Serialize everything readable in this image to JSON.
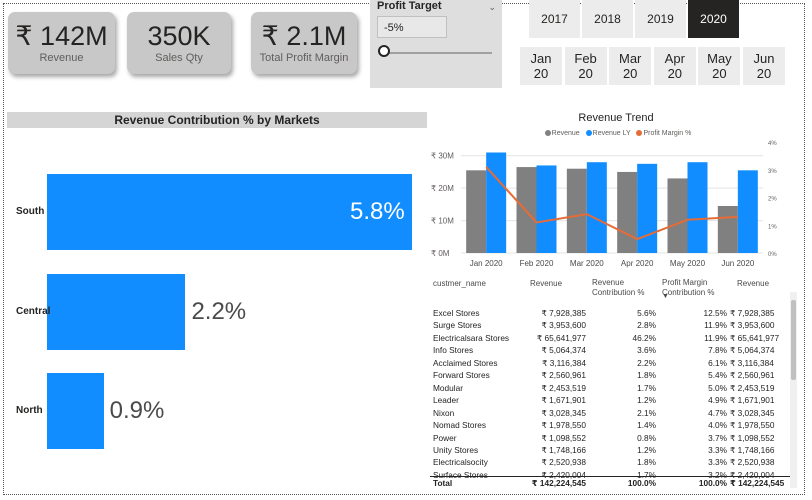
{
  "cards": [
    {
      "value": "₹ 142M",
      "label": "Revenue"
    },
    {
      "value": "350K",
      "label": "Sales Qty"
    },
    {
      "value": "₹ 2.1M",
      "label": "Total Profit Margin"
    }
  ],
  "slicer": {
    "title": "Profit Target",
    "value": "-5%",
    "chevron": "chevron-down-icon",
    "slider_level": 0
  },
  "years": [
    {
      "label": "2017",
      "selected": false
    },
    {
      "label": "2018",
      "selected": false
    },
    {
      "label": "2019",
      "selected": false
    },
    {
      "label": "2020",
      "selected": true
    }
  ],
  "months": [
    {
      "month": "Jan",
      "year": "20"
    },
    {
      "month": "Feb",
      "year": "20"
    },
    {
      "month": "Mar",
      "year": "20"
    },
    {
      "month": "Apr",
      "year": "20"
    },
    {
      "month": "May",
      "year": "20"
    },
    {
      "month": "Jun",
      "year": "20"
    }
  ],
  "colors": {
    "accent": "#118dff",
    "gray": "#808080",
    "orange": "#e66c37",
    "selected": "#252423"
  },
  "chart_data": [
    {
      "type": "bar",
      "title": "Revenue Contribution % by Markets",
      "orientation": "horizontal",
      "categories": [
        "South",
        "Central",
        "North"
      ],
      "values": [
        5.8,
        2.2,
        0.9
      ],
      "value_labels": [
        "5.8%",
        "2.2%",
        "0.9%"
      ],
      "xlim": [
        0,
        5.8
      ]
    },
    {
      "type": "bar",
      "title": "Revenue Trend",
      "categories": [
        "Jan 2020",
        "Feb 2020",
        "Mar 2020",
        "Apr 2020",
        "May 2020",
        "Jun 2020"
      ],
      "series": [
        {
          "name": "Revenue",
          "values": [
            25.5,
            26.5,
            26,
            25,
            23,
            14.5
          ]
        },
        {
          "name": "Revenue LY",
          "values": [
            31,
            27,
            28,
            27.5,
            28,
            25.5
          ]
        },
        {
          "name": "Profit Margin %",
          "values": [
            3.1,
            1.1,
            1.4,
            0.5,
            1.2,
            1.3
          ],
          "axis": "right"
        }
      ],
      "yticks": [
        "₹ 0M",
        "₹ 10M",
        "₹ 20M",
        "₹ 30M"
      ],
      "ylim": [
        0,
        33
      ],
      "y2ticks": [
        "0%",
        "1%",
        "2%",
        "3%",
        "4%"
      ],
      "y2lim": [
        0,
        4
      ],
      "legend": "top"
    }
  ],
  "table": {
    "headers": [
      "custmer_name",
      "Revenue",
      "Revenue Contribution %",
      "Profit Margin Contribution %",
      "Revenue"
    ],
    "rows": [
      [
        "Excel Stores",
        "₹ 7,928,385",
        "5.6%",
        "12.5%",
        "₹ 7,928,385"
      ],
      [
        "Surge Stores",
        "₹ 3,953,600",
        "2.8%",
        "11.9%",
        "₹ 3,953,600"
      ],
      [
        "Electricalsara Stores",
        "₹ 65,641,977",
        "46.2%",
        "11.9%",
        "₹ 65,641,977"
      ],
      [
        "Info Stores",
        "₹ 5,064,374",
        "3.6%",
        "7.8%",
        "₹ 5,064,374"
      ],
      [
        "Acclaimed Stores",
        "₹ 3,116,384",
        "2.2%",
        "6.1%",
        "₹ 3,116,384"
      ],
      [
        "Forward Stores",
        "₹ 2,560,961",
        "1.8%",
        "5.4%",
        "₹ 2,560,961"
      ],
      [
        "Modular",
        "₹ 2,453,519",
        "1.7%",
        "5.0%",
        "₹ 2,453,519"
      ],
      [
        "Leader",
        "₹ 1,671,901",
        "1.2%",
        "4.9%",
        "₹ 1,671,901"
      ],
      [
        "Nixon",
        "₹ 3,028,345",
        "2.1%",
        "4.7%",
        "₹ 3,028,345"
      ],
      [
        "Nomad Stores",
        "₹ 1,978,550",
        "1.4%",
        "4.0%",
        "₹ 1,978,550"
      ],
      [
        "Power",
        "₹ 1,098,552",
        "0.8%",
        "3.7%",
        "₹ 1,098,552"
      ],
      [
        "Unity Stores",
        "₹ 1,748,166",
        "1.2%",
        "3.3%",
        "₹ 1,748,166"
      ],
      [
        "Electricalsocity",
        "₹ 2,520,938",
        "1.8%",
        "3.3%",
        "₹ 2,520,938"
      ],
      [
        "Surface Stores",
        "₹ 2,420,004",
        "1.7%",
        "3.2%",
        "₹ 2,420,004"
      ]
    ],
    "total": [
      "Total",
      "₹ 142,224,545",
      "100.0%",
      "100.0%",
      "₹ 142,224,545"
    ]
  }
}
